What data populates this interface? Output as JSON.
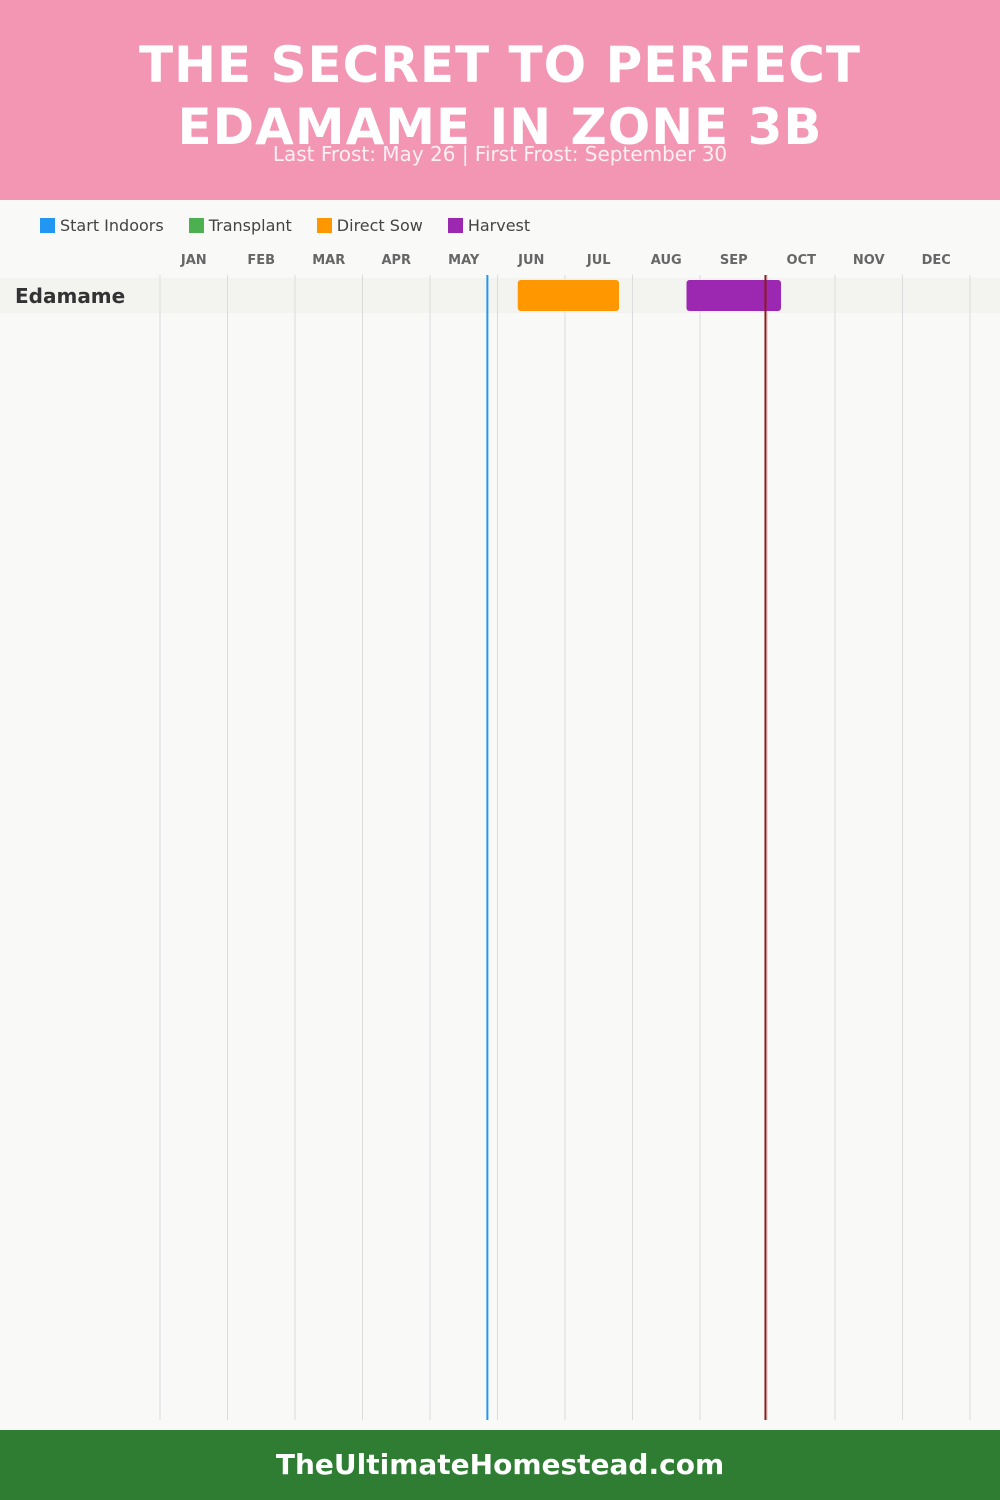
{
  "header": {
    "title": "THE SECRET TO PERFECT EDAMAME IN ZONE 3B",
    "subtitle": "Last Frost: May 26 | First Frost: September 30"
  },
  "legend": [
    {
      "label": "Start Indoors",
      "color": "#2196f3"
    },
    {
      "label": "Transplant",
      "color": "#4caf50"
    },
    {
      "label": "Direct Sow",
      "color": "#ff9800"
    },
    {
      "label": "Harvest",
      "color": "#9c27b0"
    }
  ],
  "footer": {
    "site": "TheUltimateHomestead.com"
  },
  "chart_data": {
    "type": "gantt",
    "months": [
      "JAN",
      "FEB",
      "MAR",
      "APR",
      "MAY",
      "JUN",
      "JUL",
      "AUG",
      "SEP",
      "OCT",
      "NOV",
      "DEC"
    ],
    "rows": [
      {
        "crop": "Edamame",
        "phases": [
          {
            "phase": "Direct Sow",
            "start": "Jun 10",
            "end": "Jul 25",
            "start_month": 5.3,
            "end_month": 6.8,
            "color": "#ff9800"
          },
          {
            "phase": "Harvest",
            "start": "Aug 25",
            "end": "Oct 7",
            "start_month": 7.8,
            "end_month": 9.2,
            "color": "#9c27b0"
          }
        ]
      }
    ],
    "markers": [
      {
        "name": "last_frost",
        "date": "May 26",
        "month": 4.85,
        "color": "#2196f3"
      },
      {
        "name": "first_frost",
        "date": "September 30",
        "month": 8.97,
        "color": "#8b1a1a"
      }
    ],
    "grid": true
  }
}
